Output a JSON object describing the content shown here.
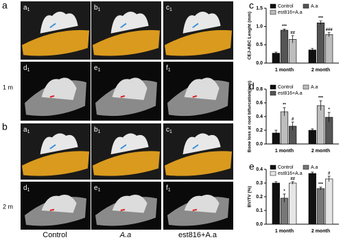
{
  "panels": {
    "top": "a",
    "bottom": "b"
  },
  "row_labels": [
    "1 m",
    "2 m"
  ],
  "column_labels": [
    "Control",
    "A.a",
    "est816+A.a"
  ],
  "images": [
    {
      "letter": "a",
      "sub": "1"
    },
    {
      "letter": "b",
      "sub": "1"
    },
    {
      "letter": "c",
      "sub": "1"
    },
    {
      "letter": "d",
      "sub": "1"
    },
    {
      "letter": "e",
      "sub": "1"
    },
    {
      "letter": "f",
      "sub": "1"
    },
    {
      "letter": "a",
      "sub": "1"
    },
    {
      "letter": "b",
      "sub": "1"
    },
    {
      "letter": "c",
      "sub": "1"
    },
    {
      "letter": "d",
      "sub": "1"
    },
    {
      "letter": "e",
      "sub": "1"
    },
    {
      "letter": "f",
      "sub": "1"
    }
  ],
  "chart_data": [
    {
      "type": "bar",
      "panel": "c",
      "y_label": "CEJ-ABC Lenght (mm)",
      "categories": [
        "1 month",
        "2 month"
      ],
      "ylim": [
        0,
        1.5
      ],
      "yticks": [
        {
          "value": 0,
          "label": "0.0"
        },
        0.5,
        {
          "value": 1,
          "label": "1.0"
        },
        1.5
      ],
      "series": [
        {
          "name": "Control",
          "color": "#111111",
          "values": [
            0.27,
            0.36
          ],
          "errors": [
            0.03,
            0.04
          ]
        },
        {
          "name": "A.a",
          "color": "#555555",
          "values": [
            0.9,
            1.1
          ],
          "errors": [
            0.03,
            0.05
          ],
          "marks": [
            "***",
            "***"
          ]
        },
        {
          "name": "est816+A.a",
          "color": "#bdbdbd",
          "values": [
            0.65,
            0.78
          ],
          "errors": [
            0.1,
            0.06
          ],
          "marks": [
            "##",
            "###"
          ]
        }
      ]
    },
    {
      "type": "bar",
      "panel": "d",
      "y_label": "Bone loss at root bifurcation(mm)",
      "categories": [
        "1 month",
        "2 month"
      ],
      "ylim": [
        0,
        0.8
      ],
      "yticks": [
        {
          "value": 0,
          "label": "0.0"
        },
        0.2,
        0.4,
        0.6,
        0.8
      ],
      "series": [
        {
          "name": "Control",
          "color": "#111111",
          "values": [
            0.16,
            0.2
          ],
          "errors": [
            0.04,
            0.02
          ]
        },
        {
          "name": "A.a",
          "color": "#bdbdbd",
          "values": [
            0.47,
            0.56
          ],
          "errors": [
            0.06,
            0.07
          ],
          "marks": [
            "**",
            "***"
          ]
        },
        {
          "name": "est816+A.a",
          "color": "#555555",
          "values": [
            0.26,
            0.39
          ],
          "errors": [
            0.06,
            0.07
          ],
          "marks": [
            "#",
            "*"
          ]
        }
      ]
    },
    {
      "type": "bar",
      "panel": "e",
      "y_label": "BV/TV (%)",
      "categories": [
        "1 month",
        "2 month"
      ],
      "ylim": [
        0,
        0.4
      ],
      "yticks": [
        {
          "value": 0,
          "label": "0.0"
        },
        0.1,
        0.2,
        0.3,
        0.4
      ],
      "series": [
        {
          "name": "Control",
          "color": "#111111",
          "values": [
            0.3,
            0.37
          ],
          "errors": [
            0.01,
            0.01
          ]
        },
        {
          "name": "A.a",
          "color": "#777777",
          "values": [
            0.19,
            0.26
          ],
          "errors": [
            0.03,
            0.01
          ],
          "marks": [
            "*",
            "***"
          ]
        },
        {
          "name": "est816+A.a",
          "color": "#e6e6e6",
          "values": [
            0.3,
            0.33
          ],
          "errors": [
            0.01,
            0.02
          ],
          "marks": [
            "##",
            "#"
          ]
        }
      ]
    }
  ]
}
